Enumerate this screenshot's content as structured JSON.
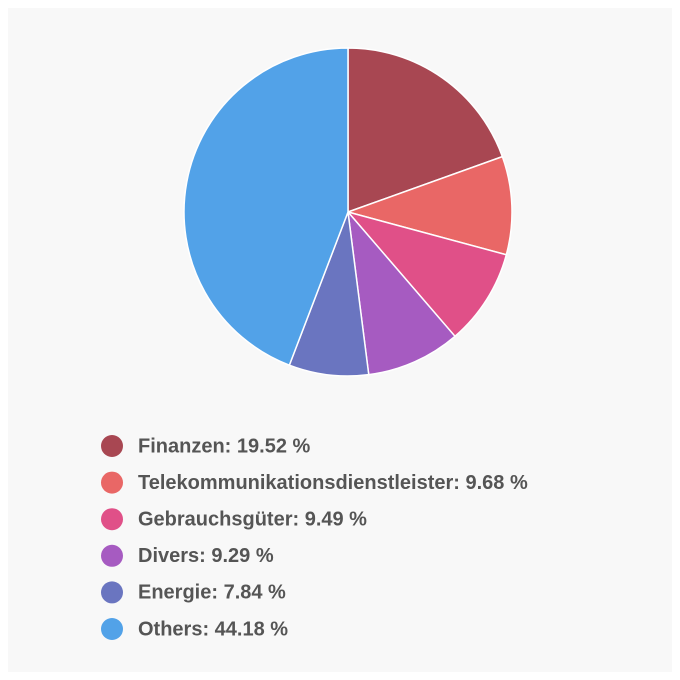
{
  "chart_data": {
    "type": "pie",
    "values": [
      19.52,
      9.68,
      9.49,
      9.29,
      7.84,
      44.18
    ],
    "value_labels": [
      "Finanzen: 19.52 %",
      "Telekommunikationsdienstleister: 9.68 %",
      "Gebrauchsgüter: 9.49 %",
      "Divers: 9.29 %",
      "Energie: 7.84 %",
      "Others: 44.18 %"
    ],
    "colors": [
      "#a84752",
      "#e96766",
      "#e05088",
      "#a65bc1",
      "#6a75c0",
      "#52a2e8"
    ],
    "legend": "bottom"
  }
}
